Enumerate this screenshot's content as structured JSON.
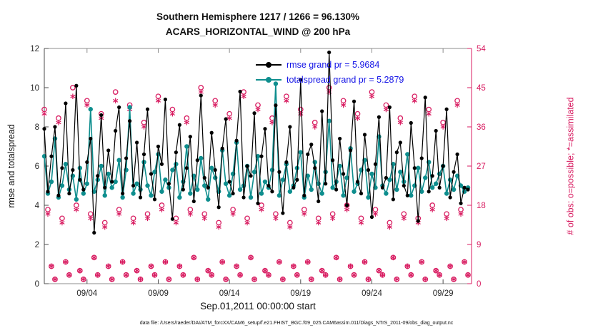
{
  "title": {
    "line1": "Southern Hemisphere 1217 / 1266 = 96.130%",
    "line2": "ACARS_HORIZONTAL_WIND @ 200 hPa"
  },
  "legend": [
    {
      "label": "rmse grand pr = 5.9684",
      "color": "#000000"
    },
    {
      "label": "totalspread grand pr = 5.2879",
      "color": "#0e8e8e"
    }
  ],
  "caption": "data file: /Users/raeder/DAI/ATM_forcXX/CAM6_setup/f.e21.FHIST_BGC.f09_025.CAM6assim.011/Diags_NTrS_2011-09/obs_diag_output.nc",
  "theme": {
    "legend_text_color": "#1414e6",
    "right_axis_color": "#d81b60",
    "rmse_color": "#000000",
    "spread_color": "#0e8e8e",
    "box_color": "#8c8c8c",
    "tick_label_color": "#262626"
  },
  "chart_data": {
    "type": "line",
    "title": "Southern Hemisphere 1217 / 1266 = 96.130% | ACARS_HORIZONTAL_WIND @ 200 hPa",
    "xlabel": "Sep.01,2011 00:00:00 start",
    "x_start_day": 0,
    "x_step_day": 0.25,
    "xlim_days": [
      0,
      30
    ],
    "x_ticks": [
      {
        "day": 3,
        "label": "09/04"
      },
      {
        "day": 8,
        "label": "09/09"
      },
      {
        "day": 13,
        "label": "09/14"
      },
      {
        "day": 18,
        "label": "09/19"
      },
      {
        "day": 23,
        "label": "09/24"
      },
      {
        "day": 28,
        "label": "09/29"
      }
    ],
    "grid": false,
    "legend_position": "top-right-inside",
    "left_axis": {
      "label": "rmse and totalspread",
      "lim": [
        0,
        12
      ],
      "ticks": [
        0,
        2,
        4,
        6,
        8,
        10,
        12
      ]
    },
    "right_axis": {
      "label": "# of obs: o=possible; *=assimilated",
      "lim": [
        0,
        54
      ],
      "ticks": [
        0,
        9,
        18,
        27,
        36,
        45,
        54
      ],
      "color": "#d81b60"
    },
    "series": [
      {
        "name": "possible",
        "axis": "right",
        "color": "#d81b60",
        "marker": "open-circle",
        "line": false,
        "values": [
          40,
          17,
          4,
          1,
          38,
          15,
          5,
          2,
          45,
          18,
          3,
          1,
          42,
          16,
          6,
          2,
          39,
          14,
          4,
          1,
          44,
          17,
          5,
          2,
          41,
          15,
          3,
          1,
          37,
          16,
          4,
          2,
          43,
          18,
          5,
          1,
          40,
          15,
          4,
          2,
          38,
          17,
          6,
          1,
          45,
          16,
          3,
          2,
          42,
          14,
          5,
          1,
          39,
          17,
          4,
          2,
          44,
          15,
          6,
          1,
          41,
          18,
          3,
          2,
          38,
          16,
          5,
          1,
          43,
          14,
          4,
          2,
          40,
          17,
          5,
          1,
          37,
          15,
          3,
          2,
          45,
          16,
          6,
          1,
          42,
          18,
          4,
          2,
          39,
          15,
          5,
          1,
          44,
          17,
          3,
          2,
          41,
          14,
          6,
          1,
          38,
          16,
          4,
          2,
          43,
          15,
          5,
          1,
          40,
          18,
          3,
          2,
          37,
          16,
          4,
          1,
          42,
          17,
          5,
          2
        ]
      },
      {
        "name": "assimilated",
        "axis": "right",
        "color": "#d81b60",
        "marker": "asterisk",
        "line": false,
        "values": [
          39,
          16,
          4,
          1,
          37,
          14,
          5,
          2,
          43,
          17,
          3,
          1,
          41,
          15,
          6,
          2,
          38,
          13,
          4,
          1,
          42,
          16,
          5,
          2,
          40,
          14,
          3,
          1,
          36,
          15,
          4,
          2,
          42,
          17,
          5,
          1,
          39,
          14,
          4,
          2,
          37,
          16,
          6,
          1,
          44,
          15,
          3,
          2,
          41,
          13,
          5,
          1,
          38,
          16,
          4,
          2,
          43,
          14,
          6,
          1,
          40,
          17,
          3,
          2,
          37,
          15,
          5,
          1,
          42,
          13,
          4,
          2,
          39,
          16,
          5,
          1,
          36,
          14,
          3,
          2,
          44,
          15,
          6,
          1,
          41,
          17,
          4,
          2,
          38,
          14,
          5,
          1,
          43,
          16,
          3,
          2,
          40,
          13,
          6,
          1,
          37,
          15,
          4,
          2,
          42,
          14,
          5,
          1,
          39,
          17,
          3,
          2,
          36,
          15,
          4,
          1,
          41,
          16,
          5,
          2
        ]
      },
      {
        "name": "totalspread",
        "axis": "left",
        "color": "#0e8e8e",
        "marker": "filled-circle",
        "line": true,
        "width": 1.6,
        "marker_size": 3.2,
        "values": [
          6.5,
          4.6,
          5.2,
          7.4,
          4.4,
          5.0,
          6.1,
          4.8,
          5.5,
          4.3,
          5.9,
          4.6,
          5.1,
          8.9,
          4.7,
          5.3,
          6.0,
          4.5,
          5.6,
          4.9,
          5.2,
          6.3,
          4.4,
          5.8,
          9.0,
          4.6,
          5.1,
          4.8,
          6.2,
          5.0,
          4.5,
          5.7,
          6.6,
          4.7,
          5.3,
          4.9,
          5.8,
          6.1,
          4.4,
          5.2,
          7.0,
          4.6,
          5.5,
          4.8,
          6.4,
          5.0,
          4.3,
          5.9,
          5.4,
          4.7,
          6.8,
          5.1,
          4.5,
          5.6,
          7.2,
          4.8,
          5.0,
          6.0,
          4.4,
          5.7,
          6.5,
          4.6,
          5.2,
          4.9,
          5.8,
          10.2,
          4.5,
          5.3,
          6.1,
          4.7,
          5.0,
          5.9,
          6.7,
          4.4,
          5.5,
          4.8,
          6.2,
          5.1,
          4.6,
          5.7,
          8.3,
          4.9,
          5.2,
          6.0,
          4.5,
          5.4,
          6.9,
          4.7,
          5.1,
          5.8,
          6.3,
          4.4,
          5.6,
          4.9,
          7.5,
          5.0,
          4.6,
          5.3,
          6.1,
          4.8,
          5.7,
          5.2,
          6.6,
          4.5,
          5.0,
          5.9,
          4.7,
          5.4,
          6.2,
          4.9,
          5.1,
          5.6,
          6.0,
          4.6,
          5.3,
          4.8,
          5.5,
          5.0,
          4.7,
          4.9
        ]
      },
      {
        "name": "rmse",
        "axis": "left",
        "color": "#000000",
        "marker": "filled-circle",
        "line": true,
        "width": 1.2,
        "marker_size": 2.6,
        "values": [
          7.9,
          4.7,
          6.5,
          8.0,
          4.5,
          5.9,
          9.2,
          4.6,
          5.8,
          10.1,
          5.3,
          4.8,
          6.2,
          7.4,
          2.6,
          5.5,
          8.6,
          4.9,
          6.8,
          5.2,
          7.8,
          9.0,
          4.6,
          6.4,
          8.3,
          5.0,
          7.2,
          4.4,
          6.6,
          8.9,
          5.6,
          4.3,
          7.0,
          6.1,
          9.4,
          5.1,
          3.3,
          6.7,
          8.1,
          4.8,
          5.9,
          7.5,
          4.2,
          6.3,
          9.6,
          5.4,
          4.9,
          7.7,
          5.8,
          3.9,
          6.9,
          8.4,
          5.2,
          4.6,
          7.3,
          9.8,
          4.4,
          6.0,
          5.5,
          8.7,
          4.1,
          6.5,
          7.9,
          5.0,
          4.7,
          9.1,
          5.7,
          3.6,
          6.2,
          8.0,
          4.9,
          5.3,
          10.4,
          4.5,
          6.6,
          7.1,
          5.9,
          4.2,
          8.8,
          5.1,
          11.8,
          6.3,
          4.8,
          7.4,
          5.6,
          4.0,
          6.8,
          9.3,
          5.2,
          4.6,
          7.6,
          5.8,
          3.4,
          6.1,
          8.5,
          4.9,
          5.4,
          9.0,
          4.3,
          6.7,
          7.2,
          5.0,
          4.5,
          8.2,
          5.9,
          3.2,
          6.4,
          9.5,
          4.7,
          5.5,
          7.8,
          4.9,
          6.0,
          8.9,
          4.4,
          5.7,
          6.6,
          4.1,
          4.9,
          4.8
        ]
      }
    ]
  }
}
